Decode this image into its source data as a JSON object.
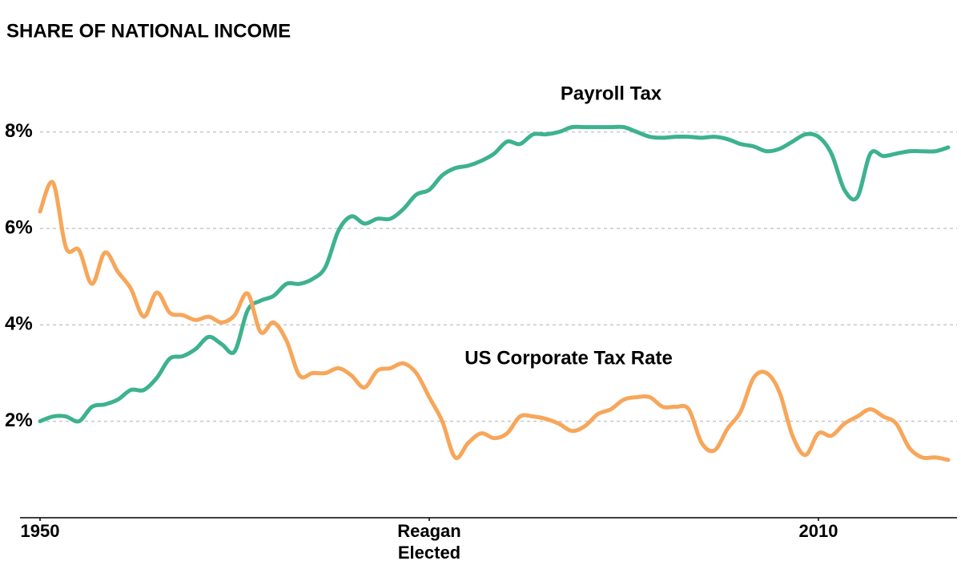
{
  "chart_data": {
    "type": "line",
    "title": "SHARE OF NATIONAL INCOME",
    "x": [
      1950,
      1951,
      1952,
      1953,
      1954,
      1955,
      1956,
      1957,
      1958,
      1959,
      1960,
      1961,
      1962,
      1963,
      1964,
      1965,
      1966,
      1967,
      1968,
      1969,
      1970,
      1971,
      1972,
      1973,
      1974,
      1975,
      1976,
      1977,
      1978,
      1979,
      1980,
      1981,
      1982,
      1983,
      1984,
      1985,
      1986,
      1987,
      1988,
      1989,
      1990,
      1991,
      1992,
      1993,
      1994,
      1995,
      1996,
      1997,
      1998,
      1999,
      2000,
      2001,
      2002,
      2003,
      2004,
      2005,
      2006,
      2007,
      2008,
      2009,
      2010,
      2011,
      2012,
      2013,
      2014,
      2015,
      2016,
      2017,
      2018,
      2019,
      2020
    ],
    "series": [
      {
        "name": "Payroll Tax",
        "color": "#3db28e",
        "values": [
          2.0,
          2.1,
          2.1,
          2.0,
          2.3,
          2.35,
          2.45,
          2.65,
          2.65,
          2.9,
          3.3,
          3.35,
          3.5,
          3.75,
          3.6,
          3.45,
          4.3,
          4.5,
          4.6,
          4.85,
          4.85,
          4.95,
          5.2,
          5.95,
          6.25,
          6.1,
          6.2,
          6.2,
          6.4,
          6.7,
          6.8,
          7.1,
          7.25,
          7.3,
          7.4,
          7.55,
          7.8,
          7.75,
          7.95,
          7.95,
          8.0,
          8.1,
          8.1,
          8.1,
          8.1,
          8.1,
          8.0,
          7.9,
          7.88,
          7.9,
          7.9,
          7.88,
          7.9,
          7.85,
          7.75,
          7.7,
          7.6,
          7.65,
          7.8,
          7.95,
          7.9,
          7.55,
          6.8,
          6.65,
          7.55,
          7.5,
          7.55,
          7.6,
          7.6,
          7.6,
          7.68
        ]
      },
      {
        "name": "US Corporate Tax Rate",
        "color": "#f7a65a",
        "values": [
          6.35,
          6.95,
          5.6,
          5.55,
          4.85,
          5.5,
          5.1,
          4.75,
          4.17,
          4.67,
          4.25,
          4.2,
          4.1,
          4.17,
          4.05,
          4.2,
          4.65,
          3.85,
          4.05,
          3.67,
          2.95,
          3.0,
          3.0,
          3.1,
          2.95,
          2.7,
          3.05,
          3.1,
          3.2,
          3.0,
          2.5,
          2.0,
          1.25,
          1.55,
          1.75,
          1.65,
          1.75,
          2.1,
          2.1,
          2.05,
          1.95,
          1.8,
          1.9,
          2.15,
          2.25,
          2.45,
          2.5,
          2.5,
          2.3,
          2.3,
          2.25,
          1.55,
          1.4,
          1.85,
          2.2,
          2.9,
          3.0,
          2.6,
          1.7,
          1.3,
          1.75,
          1.7,
          1.95,
          2.1,
          2.25,
          2.1,
          1.95,
          1.45,
          1.25,
          1.25,
          1.2
        ]
      }
    ],
    "xlim": [
      1950,
      2020
    ],
    "xticks": [
      1950,
      {
        "value": 1980,
        "label": "Reagan Elected"
      },
      2010
    ],
    "ylim": [
      0,
      9.5
    ],
    "yticks": [
      {
        "value": 2,
        "label": "2%"
      },
      {
        "value": 4,
        "label": "4%"
      },
      {
        "value": 6,
        "label": "6%"
      },
      {
        "value": 8,
        "label": "8%"
      }
    ],
    "grid": true
  }
}
